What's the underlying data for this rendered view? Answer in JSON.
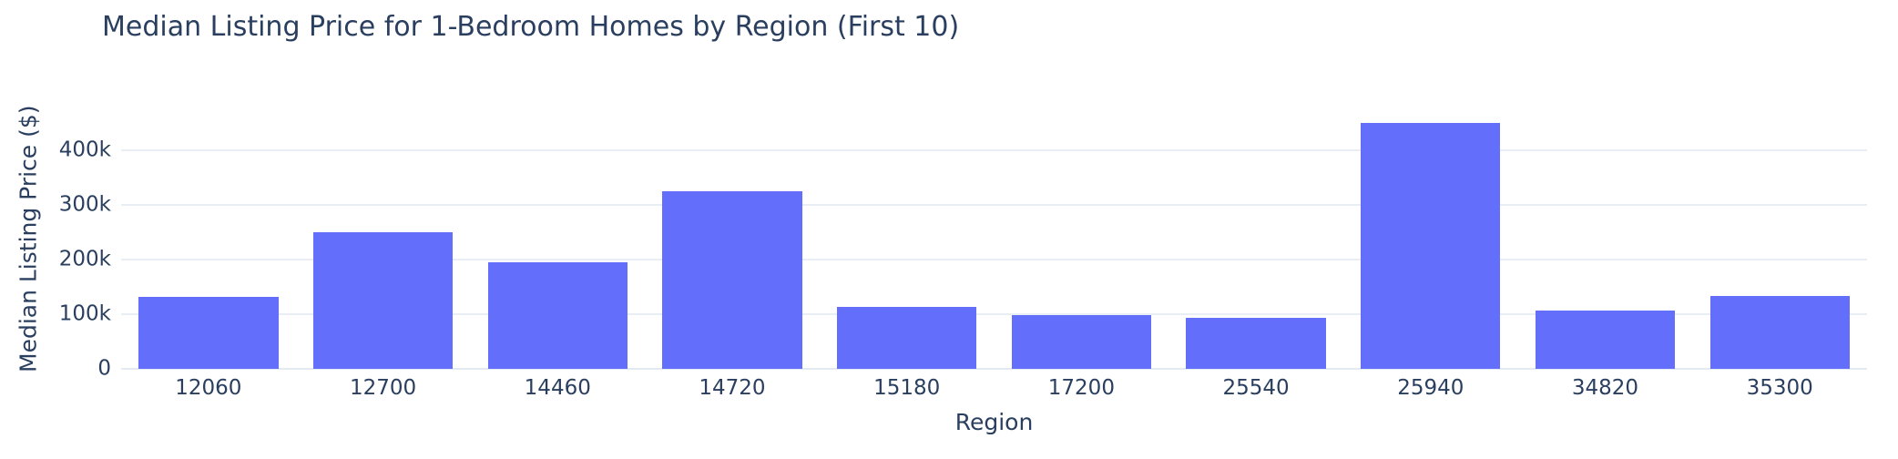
{
  "chart_data": {
    "type": "bar",
    "title": "Median Listing Price for 1-Bedroom Homes by Region (First 10)",
    "xlabel": "Region",
    "ylabel": "Median Listing Price ($)",
    "categories": [
      "12060",
      "12700",
      "14460",
      "14720",
      "15180",
      "17200",
      "25540",
      "25940",
      "34820",
      "35300"
    ],
    "values": [
      132000,
      250000,
      195000,
      324000,
      113000,
      98000,
      94000,
      449000,
      106000,
      134000
    ],
    "ylim": [
      0,
      476000
    ],
    "yticks": [
      0,
      100000,
      200000,
      300000,
      400000
    ],
    "ytick_labels": [
      "0",
      "100k",
      "200k",
      "300k",
      "400k"
    ],
    "grid": true,
    "legend_visible": false,
    "bar_gap_fraction": 0.2,
    "colors": {
      "bar": "#636EFA",
      "text": "#2a3f5f",
      "grid": "#E8EEF4",
      "zero_line": "#E4EAF2",
      "paper_background": "#ffffff",
      "plot_background": "#ffffff"
    }
  }
}
